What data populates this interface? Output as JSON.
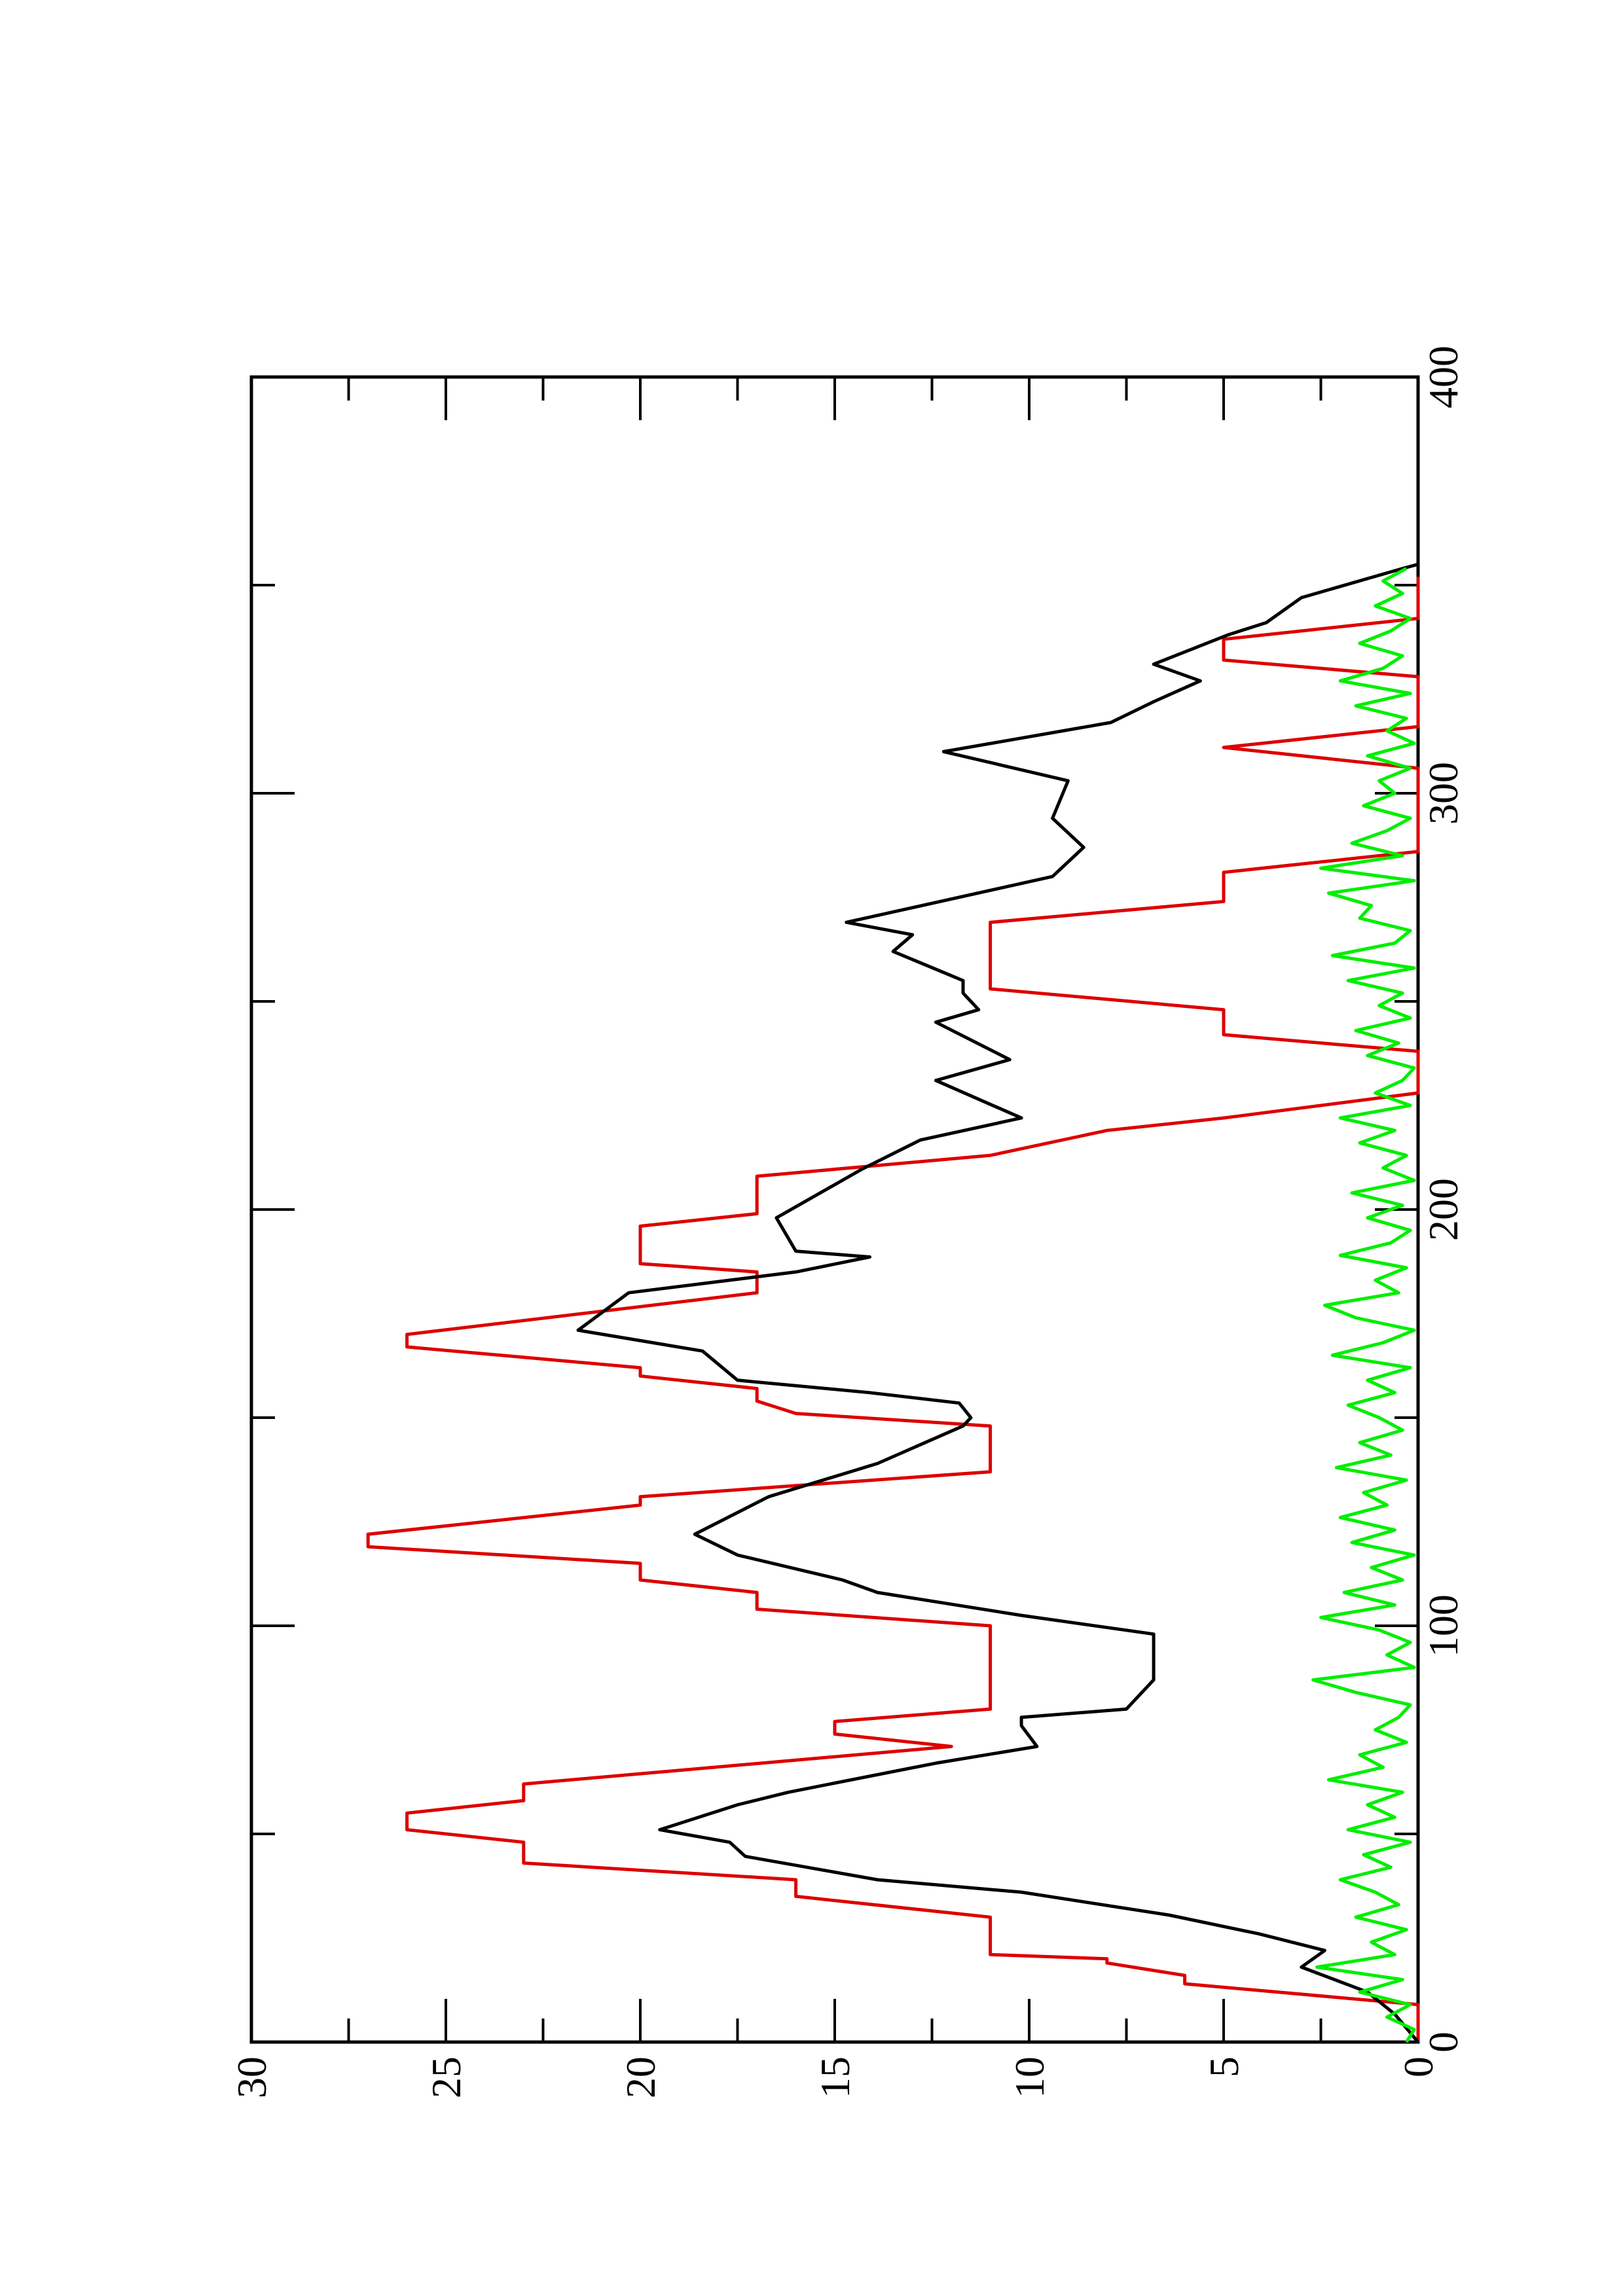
{
  "chart_data": {
    "type": "line",
    "xlim": [
      0,
      400
    ],
    "xticks": [
      0,
      100,
      200,
      300,
      400
    ],
    "ylim": [
      0,
      30
    ],
    "yticks": [
      0,
      5,
      10,
      15,
      20,
      25,
      30
    ],
    "minor_ticks": true,
    "rotated": true,
    "series": [
      {
        "color": "#dd0000",
        "x": [
          0,
          9,
          14,
          16,
          19,
          20,
          21,
          30,
          35,
          39,
          43,
          48,
          51,
          55,
          58,
          62,
          71,
          74,
          77,
          80,
          100,
          104,
          108,
          111,
          115,
          119,
          122,
          129,
          131,
          137,
          148,
          151,
          154,
          157,
          160,
          162,
          167,
          170,
          180,
          185,
          187,
          196,
          199,
          208,
          213,
          219,
          222,
          228,
          238,
          242,
          248,
          253,
          269,
          274,
          281,
          286,
          306,
          311,
          316,
          328,
          332,
          337,
          342,
          352
        ],
        "values": [
          0,
          0,
          6,
          6,
          8,
          8,
          11,
          11,
          16,
          16,
          23,
          23,
          26,
          26,
          23,
          23,
          12,
          15,
          15,
          11,
          11,
          17,
          17,
          20,
          20,
          27,
          27,
          20,
          20,
          11,
          11,
          16,
          17,
          17,
          20,
          20,
          26,
          26,
          17,
          17,
          20,
          20,
          17,
          17,
          11,
          8,
          5,
          0,
          0,
          5,
          5,
          11,
          11,
          5,
          5,
          0,
          0,
          5,
          0,
          0,
          5,
          5,
          0,
          0
        ]
      },
      {
        "color": "#000000",
        "x": [
          0,
          6.7,
          12,
          18,
          22,
          26,
          30.5,
          36,
          39,
          44.6,
          48,
          51,
          57,
          60,
          67,
          71,
          76,
          78,
          80,
          87,
          98,
          102.5,
          108,
          111,
          117,
          122,
          131,
          139,
          148,
          150,
          153.5,
          156,
          159,
          166,
          171,
          180,
          185,
          188.6,
          190,
          198,
          209.7,
          216.7,
          222,
          231,
          236,
          245,
          248,
          252,
          255,
          262,
          266,
          269,
          280,
          287,
          294,
          303,
          310,
          317,
          322,
          327,
          331,
          338,
          341,
          347,
          354,
          355
        ],
        "values": [
          0,
          0.6,
          1.3,
          3,
          2.4,
          4.1,
          6.4,
          10.2,
          13.9,
          17.3,
          17.7,
          19.5,
          17.5,
          16.2,
          12.4,
          9.8,
          10.2,
          10.2,
          7.5,
          6.8,
          6.8,
          10.2,
          13.9,
          14.8,
          17.5,
          18.6,
          16.7,
          13.9,
          11.7,
          11.5,
          11.8,
          14.1,
          17.5,
          18.4,
          21.6,
          20.3,
          16,
          14.1,
          16,
          16.5,
          14.3,
          12.8,
          10.2,
          12.4,
          10.5,
          12.4,
          11.3,
          11.7,
          11.7,
          13.5,
          13,
          14.7,
          9.4,
          8.6,
          9.4,
          9,
          12.2,
          7.9,
          6.8,
          5.6,
          6.8,
          4.9,
          3.9,
          3,
          0.4,
          0
        ]
      },
      {
        "color": "#00ee00",
        "x": [
          0,
          3,
          6,
          9,
          12,
          15,
          18,
          21,
          24,
          27,
          30,
          33,
          36,
          39,
          42,
          45,
          48,
          51,
          54,
          57,
          60,
          63,
          66,
          69,
          72,
          75,
          78,
          81,
          84,
          87,
          90,
          93,
          96,
          99,
          102,
          105,
          108,
          111,
          114,
          117,
          120,
          123,
          126,
          129,
          132,
          135,
          138,
          141,
          144,
          147,
          150,
          153,
          156,
          159,
          162,
          165,
          168,
          171,
          174,
          177,
          180,
          183,
          186,
          189,
          192,
          195,
          198,
          201,
          204,
          207,
          210,
          213,
          216,
          219,
          222,
          225,
          228,
          231,
          234,
          237,
          240,
          243,
          246,
          249,
          252,
          255,
          258,
          261,
          264,
          267,
          270,
          273,
          276,
          279,
          282,
          285,
          288,
          291,
          294,
          297,
          300,
          303,
          306,
          309,
          312,
          315,
          318,
          321,
          324,
          327,
          330,
          333,
          336,
          339,
          342,
          345,
          348,
          351,
          354
        ],
        "values": [
          0.3,
          0.1,
          0.8,
          0.2,
          1.5,
          0.4,
          2.6,
          0.6,
          1.2,
          0.3,
          1.6,
          0.5,
          1.1,
          2.0,
          0.7,
          1.4,
          0.2,
          1.8,
          0.6,
          1.3,
          0.4,
          2.3,
          0.9,
          1.5,
          0.3,
          1.1,
          0.5,
          0.2,
          1.6,
          2.7,
          0.1,
          0.8,
          0.2,
          1.0,
          2.5,
          0.6,
          1.9,
          0.4,
          1.2,
          0.1,
          1.7,
          0.6,
          2.0,
          0.8,
          1.4,
          0.3,
          2.1,
          0.7,
          1.5,
          0.4,
          1.0,
          1.8,
          0.6,
          1.3,
          0.2,
          2.2,
          0.9,
          0.1,
          1.6,
          2.4,
          0.5,
          1.1,
          0.3,
          2.0,
          0.7,
          0.2,
          1.3,
          0.4,
          1.7,
          0.1,
          0.9,
          0.3,
          1.5,
          0.6,
          2.0,
          0.2,
          1.1,
          0.4,
          0.1,
          1.3,
          0.5,
          1.6,
          0.2,
          1.0,
          0.4,
          1.8,
          0.1,
          2.2,
          0.6,
          0.2,
          1.5,
          1.2,
          2.3,
          0.1,
          2.5,
          0.4,
          1.7,
          0.8,
          0.2,
          1.4,
          0.6,
          1.0,
          0.2,
          1.3,
          0.1,
          0.8,
          0.3,
          1.6,
          0.2,
          2.0,
          0.9,
          0.4,
          1.5,
          0.7,
          0.2,
          1.1,
          0.4,
          0.9,
          0.3
        ]
      }
    ]
  }
}
